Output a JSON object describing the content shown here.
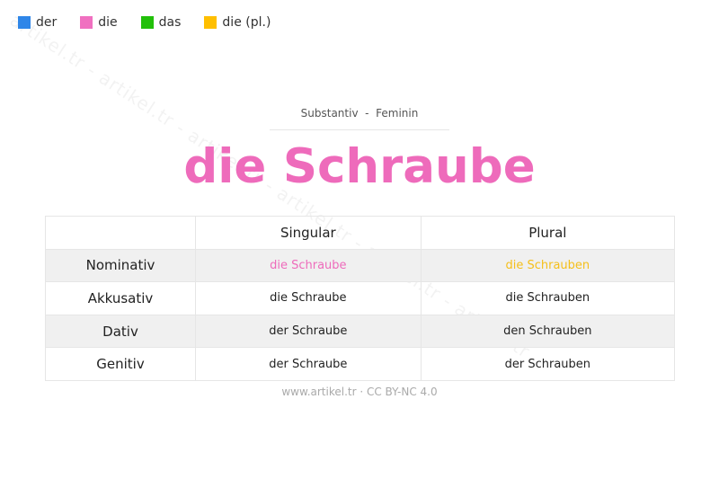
{
  "legend": [
    {
      "label": "der",
      "color": "#2f86e8"
    },
    {
      "label": "die",
      "color": "#f070c0"
    },
    {
      "label": "das",
      "color": "#22c00a"
    },
    {
      "label": "die (pl.)",
      "color": "#ffbf00"
    }
  ],
  "watermark": "artikel.tr - artikel.tr - artikel.tr - artikel.tr - artikel.tr - artikel.tr",
  "subtitle": "Substantiv  -  Feminin",
  "title": "die Schraube",
  "title_color": "#ee6bbb",
  "table": {
    "headers": [
      "",
      "Singular",
      "Plural"
    ],
    "rows": [
      {
        "case": "Nominativ",
        "singular": "die Schraube",
        "plural": "die Schrauben",
        "singular_color": "#ee6bbb",
        "plural_color": "#f5bf1a"
      },
      {
        "case": "Akkusativ",
        "singular": "die Schraube",
        "plural": "die Schrauben"
      },
      {
        "case": "Dativ",
        "singular": "der Schraube",
        "plural": "den Schrauben"
      },
      {
        "case": "Genitiv",
        "singular": "der Schraube",
        "plural": "der Schrauben"
      }
    ]
  },
  "footer": "www.artikel.tr · CC BY-NC 4.0"
}
